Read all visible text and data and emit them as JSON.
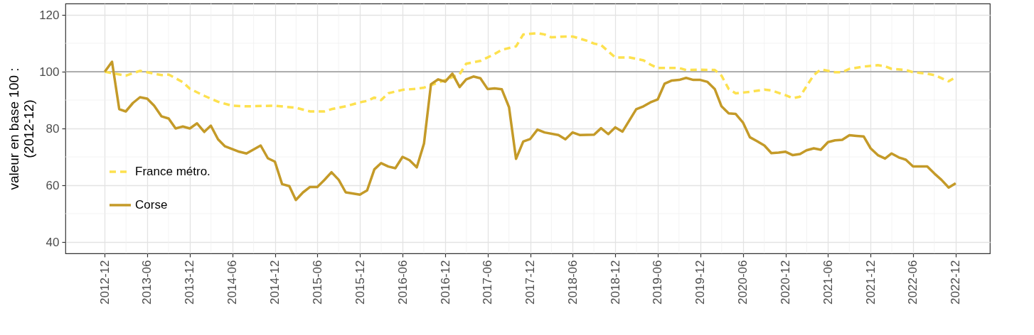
{
  "chart_data": {
    "type": "line",
    "ylabel": "valeur en base 100 :\n(2012-12)",
    "xlim": [
      "2012-06-15",
      "2023-04-27"
    ],
    "ylim": [
      36,
      124
    ],
    "yticks": [
      40,
      60,
      80,
      100,
      120
    ],
    "xticks": [
      "2012-12",
      "2013-06",
      "2013-12",
      "2014-06",
      "2014-12",
      "2015-06",
      "2015-12",
      "2016-06",
      "2016-12",
      "2017-06",
      "2017-12",
      "2018-06",
      "2018-12",
      "2019-06",
      "2019-12",
      "2020-06",
      "2020-12",
      "2021-06",
      "2021-12",
      "2022-06",
      "2022-12"
    ],
    "grid": true,
    "legend": "bottom left",
    "ref_lines": [
      {
        "axis": "y",
        "value": 100,
        "color": "#999999"
      }
    ],
    "series": [
      {
        "name": "France métro.",
        "color": "#fde14f",
        "line_style": "dashed",
        "x": [
          "2012-12",
          "2013-03",
          "2013-05",
          "2013-08",
          "2013-09",
          "2013-11",
          "2013-12",
          "2014-02",
          "2014-04",
          "2014-06",
          "2014-08",
          "2014-12",
          "2015-03",
          "2015-05",
          "2015-07",
          "2015-08",
          "2015-10",
          "2015-12",
          "2016-01",
          "2016-02",
          "2016-03",
          "2016-04",
          "2016-06",
          "2016-08",
          "2016-09",
          "2016-11",
          "2016-12",
          "2017-02",
          "2017-03",
          "2017-05",
          "2017-07",
          "2017-08",
          "2017-10",
          "2017-11",
          "2018-01",
          "2018-02",
          "2018-03",
          "2018-05",
          "2018-06",
          "2018-08",
          "2018-09",
          "2018-10",
          "2018-12",
          "2019-02",
          "2019-04",
          "2019-05",
          "2019-06",
          "2019-09",
          "2019-10",
          "2019-12",
          "2020-02",
          "2020-03",
          "2020-04",
          "2020-05",
          "2020-07",
          "2020-09",
          "2020-10",
          "2020-12",
          "2021-01",
          "2021-02",
          "2021-03",
          "2021-04",
          "2021-05",
          "2021-07",
          "2021-08",
          "2021-09",
          "2021-11",
          "2022-01",
          "2022-02",
          "2022-03",
          "2022-05",
          "2022-06",
          "2022-08",
          "2022-09",
          "2022-11",
          "2022-12"
        ],
        "values": [
          100,
          98.6,
          100.3,
          98.8,
          99,
          96.3,
          94,
          91.5,
          89.4,
          88,
          87.8,
          88,
          87.3,
          86,
          86,
          86.8,
          87.8,
          89.2,
          89.7,
          90.9,
          90,
          92.4,
          93.6,
          94,
          94.4,
          96.1,
          97.1,
          99.1,
          102.8,
          103.8,
          106.2,
          107.7,
          108.9,
          113.1,
          113.6,
          113.1,
          112.1,
          112.4,
          112.4,
          110.9,
          109.9,
          109.4,
          105,
          105,
          104,
          102.5,
          101.3,
          101.3,
          100.6,
          100.7,
          100.6,
          98.6,
          93.9,
          92.4,
          92.9,
          93.7,
          93.4,
          91.7,
          90.7,
          91.2,
          94.9,
          98.8,
          100.8,
          99.8,
          99.8,
          101,
          101.8,
          102.3,
          101.9,
          101,
          100.6,
          99.8,
          99.3,
          98.8,
          96.6,
          98.1
        ]
      },
      {
        "name": "Corse",
        "color": "#c49a28",
        "line_style": "solid",
        "x": [
          "2012-12",
          "2013-01",
          "2013-02",
          "2013-03",
          "2013-04",
          "2013-05",
          "2013-06",
          "2013-07",
          "2013-08",
          "2013-09",
          "2013-10",
          "2013-11",
          "2013-12",
          "2014-01",
          "2014-02",
          "2014-03",
          "2014-04",
          "2014-05",
          "2014-07",
          "2014-08",
          "2014-10",
          "2014-11",
          "2014-12",
          "2015-01",
          "2015-02",
          "2015-03",
          "2015-04",
          "2015-05",
          "2015-06",
          "2015-07",
          "2015-08",
          "2015-09",
          "2015-10",
          "2015-12",
          "2016-01",
          "2016-02",
          "2016-03",
          "2016-04",
          "2016-05",
          "2016-06",
          "2016-07",
          "2016-08",
          "2016-09",
          "2016-10",
          "2016-11",
          "2016-12",
          "2017-01",
          "2017-02",
          "2017-03",
          "2017-04",
          "2017-05",
          "2017-06",
          "2017-07",
          "2017-08",
          "2017-09",
          "2017-10",
          "2017-11",
          "2017-12",
          "2018-01",
          "2018-02",
          "2018-04",
          "2018-05",
          "2018-06",
          "2018-07",
          "2018-09",
          "2018-10",
          "2018-11",
          "2018-12",
          "2019-01",
          "2019-03",
          "2019-04",
          "2019-05",
          "2019-06",
          "2019-07",
          "2019-08",
          "2019-09",
          "2019-10",
          "2019-11",
          "2019-12",
          "2020-01",
          "2020-02",
          "2020-03",
          "2020-04",
          "2020-05",
          "2020-06",
          "2020-07",
          "2020-08",
          "2020-09",
          "2020-10",
          "2020-11",
          "2020-12",
          "2021-01",
          "2021-02",
          "2021-03",
          "2021-04",
          "2021-05",
          "2021-06",
          "2021-07",
          "2021-08",
          "2021-09",
          "2021-10",
          "2021-11",
          "2021-12",
          "2022-01",
          "2022-02",
          "2022-03",
          "2022-04",
          "2022-05",
          "2022-06",
          "2022-07",
          "2022-08",
          "2022-09",
          "2022-10",
          "2022-11",
          "2022-12"
        ],
        "values": [
          100,
          103.5,
          86.8,
          86,
          89,
          91,
          90.5,
          88,
          84.3,
          83.5,
          80,
          80.7,
          80,
          81.8,
          78.8,
          81,
          76.2,
          73.7,
          71.8,
          71.2,
          74,
          69.5,
          68.3,
          60.4,
          59.7,
          54.8,
          57.5,
          59.4,
          59.4,
          61.8,
          64.6,
          61.9,
          57.5,
          56.7,
          58.2,
          65.6,
          67.8,
          66.6,
          66,
          70,
          68.8,
          66.3,
          74.7,
          95.6,
          97.3,
          96.5,
          99.3,
          94.6,
          97.3,
          98.3,
          97.7,
          93.9,
          94.1,
          93.8,
          87.5,
          69.3,
          75.4,
          76.3,
          79.6,
          78.6,
          77.7,
          76.2,
          78.6,
          77.7,
          77.8,
          80.1,
          78,
          80.4,
          78.9,
          86.8,
          87.8,
          89.2,
          90.2,
          95.8,
          96.9,
          97.1,
          97.8,
          97.1,
          97.1,
          96.4,
          93.9,
          87.8,
          85.3,
          85.1,
          82.1,
          76.9,
          75.5,
          74,
          71.3,
          71.5,
          71.8,
          70.6,
          71,
          72.3,
          73,
          72.5,
          75.2,
          75.8,
          76,
          77.6,
          77.4,
          77.2,
          73,
          70.6,
          69.4,
          71.2,
          69.8,
          69,
          66.6,
          66.6,
          66.6,
          64.1,
          61.9,
          59.2,
          60.7
        ]
      }
    ]
  }
}
